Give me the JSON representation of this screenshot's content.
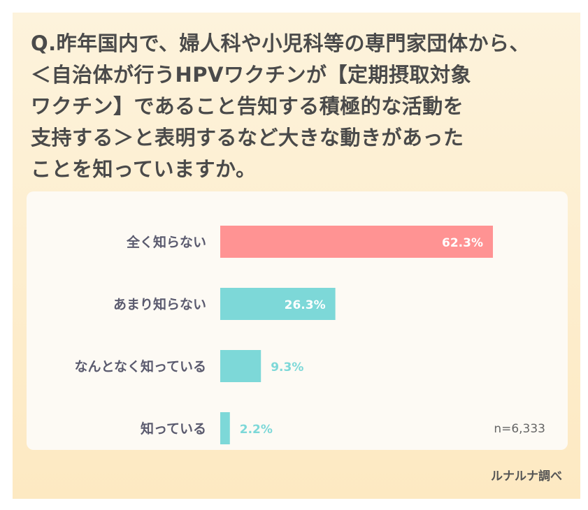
{
  "question": "Q.昨年国内で、婦人科や小児科等の専門家団体から、\n＜自治体が行うHPVワクチンが【定期摂取対象\nワクチン】であること告知する積極的な活動を\n支持する＞と表明するなど大きな動きがあった\nことを知っていますか。",
  "sample_size": "n=6,333",
  "source": "ルナルナ調べ",
  "colors": {
    "highlight_bar": "#ff9393",
    "bar": "#7dd8d8",
    "label_inside": "#ffffff",
    "label_outside": "#7dd8d8",
    "background": "#fdeecb",
    "panel": "#fdfaf4"
  },
  "chart_data": {
    "type": "bar",
    "orientation": "horizontal",
    "categories": [
      "全く知らない",
      "あまり知らない",
      "なんとなく知っている",
      "知っている"
    ],
    "values": [
      62.3,
      26.3,
      9.3,
      2.2
    ],
    "value_labels": [
      "62.3%",
      "26.3%",
      "9.3%",
      "2.2%"
    ],
    "unit": "%",
    "xlim": [
      0,
      100
    ],
    "grid": false,
    "legend": "none"
  }
}
